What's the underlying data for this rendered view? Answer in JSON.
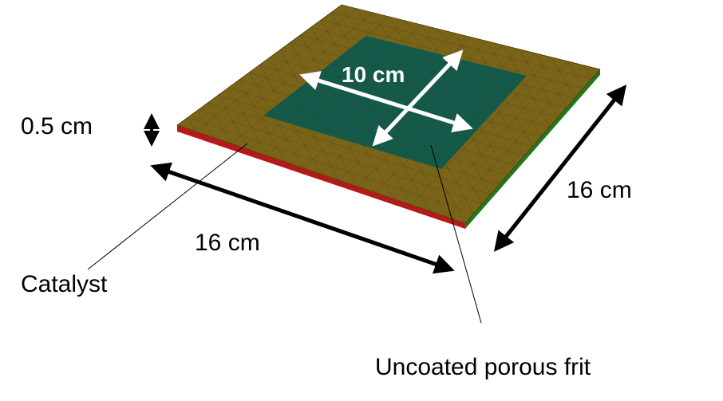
{
  "labels": {
    "thickness": "0.5 cm",
    "width_right": "16 cm",
    "width_front": "16 cm",
    "inner_square": "10 cm",
    "catalyst": "Catalyst",
    "frit": "Uncoated porous frit"
  },
  "colors": {
    "catalyst_top": "#7a6418",
    "frit_top": "#145a4a",
    "mesh_line": "#3a3a30",
    "side_front": "#c81e1e",
    "side_right": "#1f7a1f",
    "arrow_black": "#000000",
    "arrow_white": "#ffffff"
  }
}
